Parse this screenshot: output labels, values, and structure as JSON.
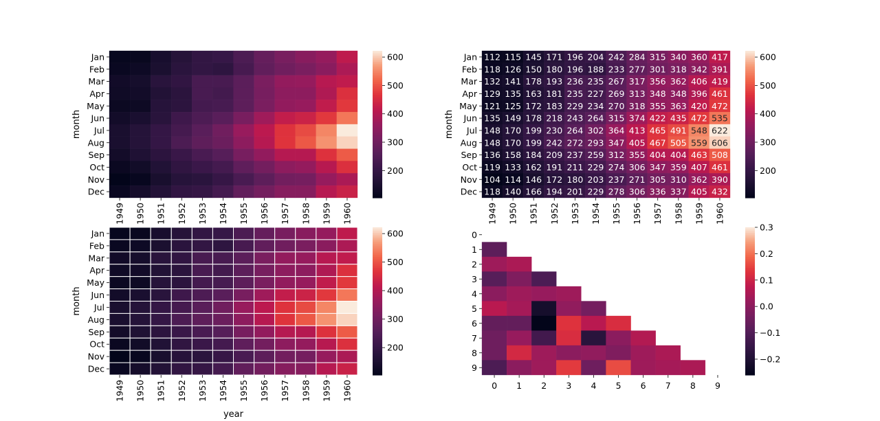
{
  "chart_data": [
    {
      "type": "heatmap",
      "annotated": false,
      "linewidths": false,
      "xlabel": "",
      "ylabel": "month",
      "x_categories": [
        "1949",
        "1950",
        "1951",
        "1952",
        "1953",
        "1954",
        "1955",
        "1956",
        "1957",
        "1958",
        "1959",
        "1960"
      ],
      "y_categories": [
        "Jan",
        "Feb",
        "Mar",
        "Apr",
        "May",
        "Jun",
        "Jul",
        "Aug",
        "Sep",
        "Oct",
        "Nov",
        "Dec"
      ],
      "values": [
        [
          112,
          115,
          145,
          171,
          196,
          204,
          242,
          284,
          315,
          340,
          360,
          417
        ],
        [
          118,
          126,
          150,
          180,
          196,
          188,
          233,
          277,
          301,
          318,
          342,
          391
        ],
        [
          132,
          141,
          178,
          193,
          236,
          235,
          267,
          317,
          356,
          362,
          406,
          419
        ],
        [
          129,
          135,
          163,
          181,
          235,
          227,
          269,
          313,
          348,
          348,
          396,
          461
        ],
        [
          121,
          125,
          172,
          183,
          229,
          234,
          270,
          318,
          355,
          363,
          420,
          472
        ],
        [
          135,
          149,
          178,
          218,
          243,
          264,
          315,
          374,
          422,
          435,
          472,
          535
        ],
        [
          148,
          170,
          199,
          230,
          264,
          302,
          364,
          413,
          465,
          491,
          548,
          622
        ],
        [
          148,
          170,
          199,
          242,
          272,
          293,
          347,
          405,
          467,
          505,
          559,
          606
        ],
        [
          136,
          158,
          184,
          209,
          237,
          259,
          312,
          355,
          404,
          404,
          463,
          508
        ],
        [
          119,
          133,
          162,
          191,
          211,
          229,
          274,
          306,
          347,
          359,
          407,
          461
        ],
        [
          104,
          114,
          146,
          172,
          180,
          203,
          237,
          271,
          305,
          310,
          362,
          390
        ],
        [
          118,
          140,
          166,
          194,
          201,
          229,
          278,
          306,
          336,
          337,
          405,
          432
        ]
      ],
      "vmin": 104,
      "vmax": 622,
      "colorbar_ticks": [
        "200",
        "300",
        "400",
        "500",
        "600"
      ]
    },
    {
      "type": "heatmap",
      "annotated": true,
      "linewidths": false,
      "xlabel": "",
      "ylabel": "month",
      "x_categories": [
        "1949",
        "1950",
        "1951",
        "1952",
        "1953",
        "1954",
        "1955",
        "1956",
        "1957",
        "1958",
        "1959",
        "1960"
      ],
      "y_categories": [
        "Jan",
        "Feb",
        "Mar",
        "Apr",
        "May",
        "Jun",
        "Jul",
        "Aug",
        "Sep",
        "Oct",
        "Nov",
        "Dec"
      ],
      "values": [
        [
          112,
          115,
          145,
          171,
          196,
          204,
          242,
          284,
          315,
          340,
          360,
          417
        ],
        [
          118,
          126,
          150,
          180,
          196,
          188,
          233,
          277,
          301,
          318,
          342,
          391
        ],
        [
          132,
          141,
          178,
          193,
          236,
          235,
          267,
          317,
          356,
          362,
          406,
          419
        ],
        [
          129,
          135,
          163,
          181,
          235,
          227,
          269,
          313,
          348,
          348,
          396,
          461
        ],
        [
          121,
          125,
          172,
          183,
          229,
          234,
          270,
          318,
          355,
          363,
          420,
          472
        ],
        [
          135,
          149,
          178,
          218,
          243,
          264,
          315,
          374,
          422,
          435,
          472,
          535
        ],
        [
          148,
          170,
          199,
          230,
          264,
          302,
          364,
          413,
          465,
          491,
          548,
          622
        ],
        [
          148,
          170,
          199,
          242,
          272,
          293,
          347,
          405,
          467,
          505,
          559,
          606
        ],
        [
          136,
          158,
          184,
          209,
          237,
          259,
          312,
          355,
          404,
          404,
          463,
          508
        ],
        [
          119,
          133,
          162,
          191,
          211,
          229,
          274,
          306,
          347,
          359,
          407,
          461
        ],
        [
          104,
          114,
          146,
          172,
          180,
          203,
          237,
          271,
          305,
          310,
          362,
          390
        ],
        [
          118,
          140,
          166,
          194,
          201,
          229,
          278,
          306,
          336,
          337,
          405,
          432
        ]
      ],
      "vmin": 104,
      "vmax": 622,
      "colorbar_ticks": [
        "200",
        "300",
        "400",
        "500",
        "600"
      ]
    },
    {
      "type": "heatmap",
      "annotated": false,
      "linewidths": true,
      "xlabel": "year",
      "ylabel": "month",
      "x_categories": [
        "1949",
        "1950",
        "1951",
        "1952",
        "1953",
        "1954",
        "1955",
        "1956",
        "1957",
        "1958",
        "1959",
        "1960"
      ],
      "y_categories": [
        "Jan",
        "Feb",
        "Mar",
        "Apr",
        "May",
        "Jun",
        "Jul",
        "Aug",
        "Sep",
        "Oct",
        "Nov",
        "Dec"
      ],
      "values": [
        [
          112,
          115,
          145,
          171,
          196,
          204,
          242,
          284,
          315,
          340,
          360,
          417
        ],
        [
          118,
          126,
          150,
          180,
          196,
          188,
          233,
          277,
          301,
          318,
          342,
          391
        ],
        [
          132,
          141,
          178,
          193,
          236,
          235,
          267,
          317,
          356,
          362,
          406,
          419
        ],
        [
          129,
          135,
          163,
          181,
          235,
          227,
          269,
          313,
          348,
          348,
          396,
          461
        ],
        [
          121,
          125,
          172,
          183,
          229,
          234,
          270,
          318,
          355,
          363,
          420,
          472
        ],
        [
          135,
          149,
          178,
          218,
          243,
          264,
          315,
          374,
          422,
          435,
          472,
          535
        ],
        [
          148,
          170,
          199,
          230,
          264,
          302,
          364,
          413,
          465,
          491,
          548,
          622
        ],
        [
          148,
          170,
          199,
          242,
          272,
          293,
          347,
          405,
          467,
          505,
          559,
          606
        ],
        [
          136,
          158,
          184,
          209,
          237,
          259,
          312,
          355,
          404,
          404,
          463,
          508
        ],
        [
          119,
          133,
          162,
          191,
          211,
          229,
          274,
          306,
          347,
          359,
          407,
          461
        ],
        [
          104,
          114,
          146,
          172,
          180,
          203,
          237,
          271,
          305,
          310,
          362,
          390
        ],
        [
          118,
          140,
          166,
          194,
          201,
          229,
          278,
          306,
          336,
          337,
          405,
          432
        ]
      ],
      "vmin": 104,
      "vmax": 622,
      "colorbar_ticks": [
        "200",
        "300",
        "400",
        "500",
        "600"
      ]
    },
    {
      "type": "heatmap",
      "annotated": false,
      "linewidths": false,
      "masked_upper_triangle": true,
      "xlabel": "",
      "ylabel": "",
      "x_categories": [
        "0",
        "1",
        "2",
        "3",
        "4",
        "5",
        "6",
        "7",
        "8",
        "9"
      ],
      "y_categories": [
        "0",
        "1",
        "2",
        "3",
        "4",
        "5",
        "6",
        "7",
        "8",
        "9"
      ],
      "values": [
        [
          null,
          null,
          null,
          null,
          null,
          null,
          null,
          null,
          null,
          null
        ],
        [
          -0.08,
          null,
          null,
          null,
          null,
          null,
          null,
          null,
          null,
          null
        ],
        [
          0.03,
          0.05,
          null,
          null,
          null,
          null,
          null,
          null,
          null,
          null
        ],
        [
          -0.09,
          -0.02,
          -0.11,
          null,
          null,
          null,
          null,
          null,
          null,
          null
        ],
        [
          0.0,
          0.03,
          0.02,
          0.03,
          null,
          null,
          null,
          null,
          null,
          null
        ],
        [
          0.07,
          0.04,
          -0.22,
          0.01,
          -0.04,
          null,
          null,
          null,
          null,
          null
        ],
        [
          -0.07,
          -0.07,
          -0.26,
          0.13,
          0.07,
          0.12,
          null,
          null,
          null,
          null
        ],
        [
          -0.05,
          0.02,
          -0.13,
          0.12,
          -0.18,
          0.0,
          0.06,
          null,
          null,
          null
        ],
        [
          -0.05,
          0.11,
          0.03,
          0.0,
          0.01,
          -0.02,
          0.03,
          0.05,
          null,
          null
        ],
        [
          -0.11,
          0.0,
          0.03,
          0.14,
          -0.05,
          0.16,
          0.03,
          0.04,
          0.05,
          null
        ]
      ],
      "vmin": -0.26,
      "vmax": 0.3,
      "colorbar_ticks": [
        "−0.2",
        "−0.1",
        "0.0",
        "0.1",
        "0.2",
        "0.3"
      ],
      "colorbar_tick_values": [
        -0.2,
        -0.1,
        0.0,
        0.1,
        0.2,
        0.3
      ]
    }
  ]
}
